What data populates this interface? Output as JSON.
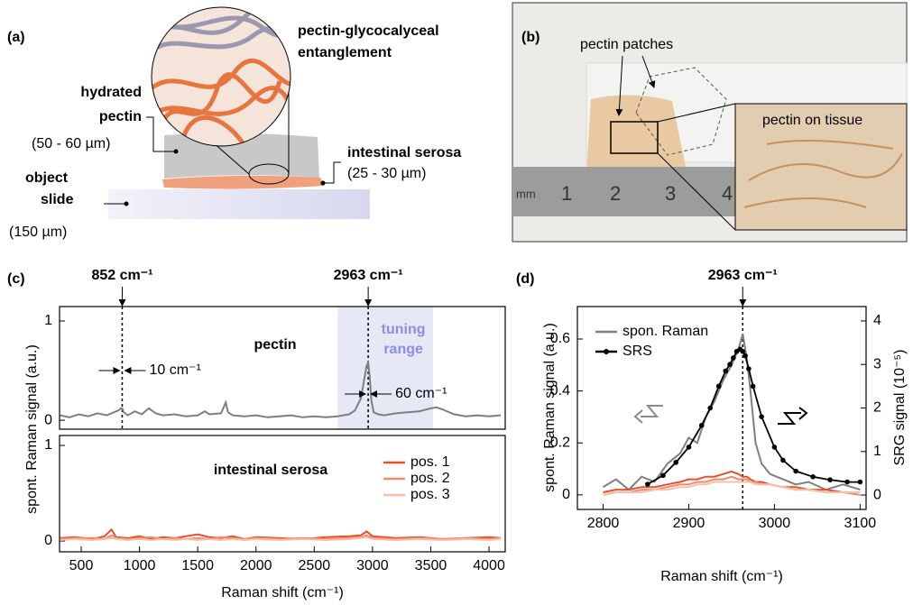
{
  "panel_a": {
    "label": "(a)",
    "entanglement": [
      "pectin-glycocalyceal",
      "entanglement"
    ],
    "pectin": [
      "hydrated",
      "pectin"
    ],
    "pectin_thickness": "(50 - 60 µm)",
    "serosa": "intestinal serosa",
    "serosa_thickness": "(25 - 30 µm)",
    "slide": [
      "object",
      "slide"
    ],
    "slide_thickness": "(150 µm)"
  },
  "panel_b": {
    "label": "(b)",
    "patches": "pectin patches",
    "inset": "pectin on tissue",
    "ruler": [
      "mm",
      "1",
      "2",
      "3",
      "4"
    ]
  },
  "chart_data": [
    {
      "type": "line",
      "panel": "(c)",
      "ylabel": "spont. Raman signal (a.u.)",
      "text": "pectin",
      "xlim": [
        314,
        4139
      ],
      "ylim": [
        -0.09,
        1.145
      ],
      "yticks": [
        0,
        1
      ],
      "tuning_range": [
        2700,
        3520
      ],
      "tuning_label": [
        "tuning",
        "range"
      ],
      "markers": [
        {
          "x": 852,
          "label": "852 cm⁻¹"
        },
        {
          "x": 2963,
          "label": "2963 cm⁻¹"
        }
      ],
      "widths": [
        "10 cm⁻¹",
        "60 cm⁻¹"
      ],
      "x": [
        320,
        400,
        480,
        560,
        640,
        720,
        780,
        820,
        840,
        852,
        865,
        900,
        960,
        1020,
        1080,
        1140,
        1200,
        1300,
        1400,
        1500,
        1560,
        1600,
        1700,
        1740,
        1760,
        1800,
        1900,
        2000,
        2100,
        2200,
        2300,
        2400,
        2500,
        2600,
        2700,
        2800,
        2850,
        2900,
        2930,
        2950,
        2963,
        2975,
        2990,
        3010,
        3050,
        3100,
        3200,
        3300,
        3400,
        3500,
        3550,
        3600,
        3700,
        3800,
        3900,
        4000,
        4100
      ],
      "series": [
        {
          "color": "#7f7f7f",
          "values": [
            0.05,
            0.03,
            0.06,
            0.04,
            0.07,
            0.05,
            0.08,
            0.1,
            0.12,
            0.12,
            0.08,
            0.05,
            0.09,
            0.06,
            0.12,
            0.07,
            0.05,
            0.06,
            0.04,
            0.05,
            0.09,
            0.06,
            0.07,
            0.18,
            0.08,
            0.05,
            0.04,
            0.05,
            0.03,
            0.04,
            0.05,
            0.03,
            0.04,
            0.03,
            0.04,
            0.06,
            0.1,
            0.22,
            0.42,
            0.55,
            0.58,
            0.45,
            0.2,
            0.08,
            0.06,
            0.05,
            0.07,
            0.08,
            0.09,
            0.12,
            0.13,
            0.11,
            0.06,
            0.04,
            0.05,
            0.04,
            0.05
          ]
        }
      ]
    },
    {
      "type": "line",
      "xlabel": "Raman shift (cm⁻¹)",
      "text": "intestinal serosa",
      "xlim": [
        314,
        4139
      ],
      "ylim": [
        -0.113,
        1.104
      ],
      "yticks": [
        0,
        1
      ],
      "xticks": [
        500,
        1000,
        1500,
        2000,
        2500,
        3000,
        3500,
        4000
      ],
      "legend": "upper right",
      "x": [
        320,
        450,
        600,
        700,
        760,
        800,
        900,
        1000,
        1100,
        1200,
        1300,
        1400,
        1500,
        1600,
        1700,
        1800,
        1900,
        2000,
        2200,
        2400,
        2600,
        2800,
        2900,
        2950,
        3000,
        3200,
        3400,
        3600,
        3800,
        4000,
        4100
      ],
      "series": [
        {
          "name": "pos. 1",
          "color": "#e8502a",
          "values": [
            0.03,
            0.04,
            0.02,
            0.05,
            0.12,
            0.04,
            0.03,
            0.05,
            0.02,
            0.04,
            0.03,
            0.05,
            0.07,
            0.04,
            0.03,
            0.05,
            0.02,
            0.04,
            0.03,
            0.02,
            0.04,
            0.05,
            0.06,
            0.1,
            0.05,
            0.03,
            0.04,
            0.02,
            0.03,
            0.04,
            0.03
          ]
        },
        {
          "name": "pos. 2",
          "color": "#f08a6a",
          "values": [
            0.02,
            0.03,
            0.03,
            0.02,
            0.06,
            0.03,
            0.02,
            0.03,
            0.04,
            0.02,
            0.03,
            0.02,
            0.03,
            0.02,
            0.04,
            0.03,
            0.02,
            0.03,
            0.02,
            0.03,
            0.02,
            0.03,
            0.04,
            0.06,
            0.03,
            0.02,
            0.03,
            0.02,
            0.03,
            0.02,
            0.03
          ]
        },
        {
          "name": "pos. 3",
          "color": "#f5c0aa",
          "values": [
            0.01,
            0.02,
            0.01,
            0.02,
            0.03,
            0.02,
            0.01,
            0.02,
            0.01,
            0.02,
            0.01,
            0.02,
            0.01,
            0.02,
            0.01,
            0.02,
            0.01,
            0.02,
            0.01,
            0.02,
            0.01,
            0.02,
            0.03,
            0.04,
            0.02,
            0.01,
            0.02,
            0.01,
            0.02,
            0.01,
            0.02
          ]
        }
      ]
    },
    {
      "type": "line",
      "panel": "(d)",
      "xlabel": "Raman shift (cm⁻¹)",
      "ylabel": "spont. Raman signal (a.u.)",
      "y2label": "SRG signal (10⁻⁵)",
      "legend": "upper left",
      "xlim": [
        2770,
        3107
      ],
      "ylim": [
        -0.056,
        0.725
      ],
      "y2lim": [
        -0.33,
        4.33
      ],
      "xticks": [
        2800,
        2900,
        3000,
        3100
      ],
      "yticks": [
        0,
        0.2,
        0.4,
        0.6
      ],
      "y2ticks": [
        0,
        1,
        2,
        3,
        4
      ],
      "markers": [
        {
          "x": 2963,
          "label": "2963 cm⁻¹"
        }
      ],
      "x": [
        2800,
        2815,
        2830,
        2845,
        2860,
        2875,
        2890,
        2900,
        2910,
        2920,
        2930,
        2940,
        2950,
        2958,
        2963,
        2968,
        2972,
        2978,
        2985,
        2995,
        3010,
        3025,
        3040,
        3060,
        3080,
        3100
      ],
      "series": [
        {
          "name": "spon. Raman",
          "color": "#7f7f7f",
          "values": [
            0.03,
            0.06,
            0.02,
            0.07,
            0.05,
            0.12,
            0.16,
            0.22,
            0.2,
            0.3,
            0.36,
            0.44,
            0.5,
            0.56,
            0.62,
            0.52,
            0.4,
            0.2,
            0.12,
            0.08,
            0.06,
            0.04,
            0.05,
            0.02,
            0.04,
            0.02
          ]
        },
        {
          "color": "#e8502a",
          "values": [
            0.01,
            0.02,
            0.02,
            0.03,
            0.03,
            0.04,
            0.05,
            0.06,
            0.06,
            0.07,
            0.07,
            0.08,
            0.09,
            0.08,
            0.07,
            0.07,
            0.06,
            0.05,
            0.05,
            0.04,
            0.03,
            0.03,
            0.02,
            0.02,
            0.01,
            0.01
          ]
        },
        {
          "color": "#f08a6a",
          "values": [
            0,
            0.01,
            0.01,
            0.02,
            0.02,
            0.03,
            0.04,
            0.04,
            0.05,
            0.05,
            0.06,
            0.06,
            0.07,
            0.06,
            0.06,
            0.06,
            0.05,
            0.05,
            0.04,
            0.04,
            0.03,
            0.02,
            0.02,
            0.01,
            0.01,
            0
          ]
        },
        {
          "color": "#f5c0aa",
          "values": [
            0,
            0.01,
            0.01,
            0.01,
            0.02,
            0.02,
            0.03,
            0.03,
            0.04,
            0.04,
            0.05,
            0.05,
            0.05,
            0.05,
            0.05,
            0.05,
            0.05,
            0.04,
            0.04,
            0.04,
            0.03,
            0.02,
            0.02,
            0.01,
            0.01,
            0.01
          ]
        },
        {
          "name": "SRS",
          "color": "#000000",
          "axis": "y2",
          "dots": true,
          "x": [
            2852,
            2870,
            2885,
            2900,
            2915,
            2925,
            2935,
            2943,
            2948,
            2952,
            2956,
            2960,
            2963,
            2966,
            2970,
            2975,
            2985,
            3000,
            3010,
            3025,
            3045,
            3065,
            3085,
            3100
          ],
          "values": [
            0.25,
            0.45,
            0.75,
            1.1,
            1.6,
            2.0,
            2.5,
            2.85,
            3.0,
            3.15,
            3.3,
            3.35,
            3.3,
            3.2,
            2.9,
            2.5,
            1.8,
            1.1,
            0.8,
            0.55,
            0.42,
            0.35,
            0.3,
            0.3
          ]
        }
      ]
    }
  ]
}
